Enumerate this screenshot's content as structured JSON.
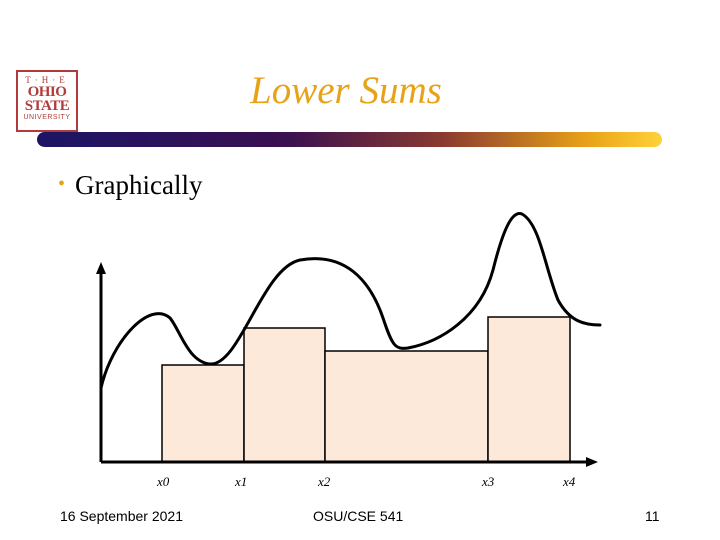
{
  "slide": {
    "title": "Lower Sums",
    "bullet": "Graphically",
    "footer": {
      "date": "16 September 2021",
      "course": "OSU/CSE 541",
      "page": "11"
    }
  },
  "logo": {
    "the": "T·H·E",
    "line1": "OHIO",
    "line2": "STATE",
    "line3": "UNIVERSITY"
  },
  "diagram": {
    "x_labels": [
      "x0",
      "x1",
      "x2",
      "x3",
      "x4"
    ],
    "colors": {
      "rect_fill": "#fde9d9",
      "curve": "#000000",
      "axis": "#000000",
      "accent": "#e8a217"
    }
  }
}
